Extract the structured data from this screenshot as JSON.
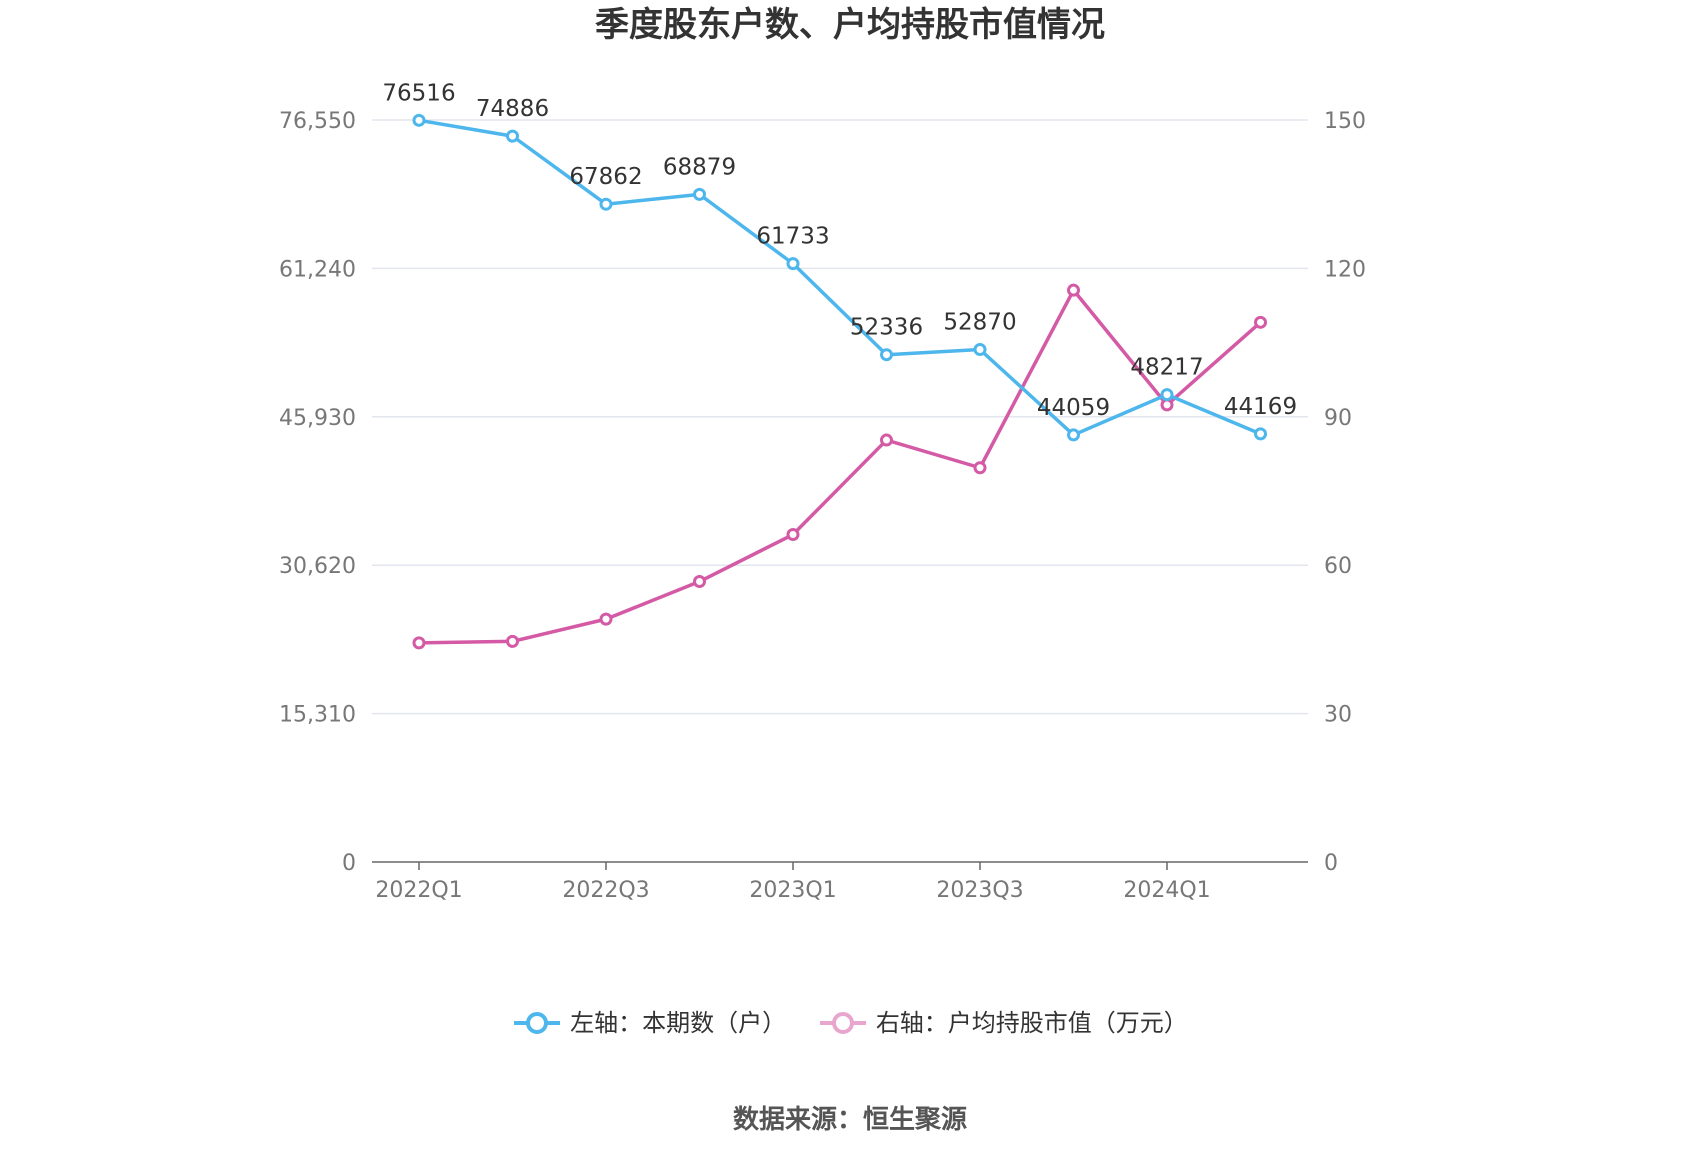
{
  "chart_data": {
    "type": "line",
    "title": "季度股东户数、户均持股市值情况",
    "categories": [
      "2022Q1",
      "2022Q2",
      "2022Q3",
      "2022Q4",
      "2023Q1",
      "2023Q2",
      "2023Q3",
      "2023Q4",
      "2024Q1",
      "2024Q2"
    ],
    "x_tick_labels": [
      "2022Q1",
      "2022Q3",
      "2023Q1",
      "2023Q3",
      "2024Q1"
    ],
    "left_axis": {
      "ticks": [
        "0",
        "15,310",
        "30,620",
        "45,930",
        "61,240",
        "76,550"
      ],
      "ylim": [
        0,
        76550
      ]
    },
    "right_axis": {
      "ticks": [
        "0",
        "30",
        "60",
        "90",
        "120",
        "150"
      ],
      "ylim": [
        0,
        150
      ]
    },
    "series": [
      {
        "name": "左轴：本期数（户）",
        "axis": "left",
        "color": "#4db6ec",
        "values": [
          76516,
          74886,
          67862,
          68879,
          61733,
          52336,
          52870,
          44059,
          48217,
          44169
        ],
        "show_labels": true
      },
      {
        "name": "右轴：户均持股市值（万元）",
        "axis": "right",
        "color": "#d45aa5",
        "legend_color": "#e8a6cf",
        "values": [
          44.3,
          44.6,
          49.1,
          56.7,
          66.2,
          85.3,
          79.7,
          115.6,
          92.4,
          109.1
        ],
        "show_labels": false
      }
    ],
    "grid": true,
    "legend_position": "bottom"
  },
  "source": "数据来源：恒生聚源"
}
